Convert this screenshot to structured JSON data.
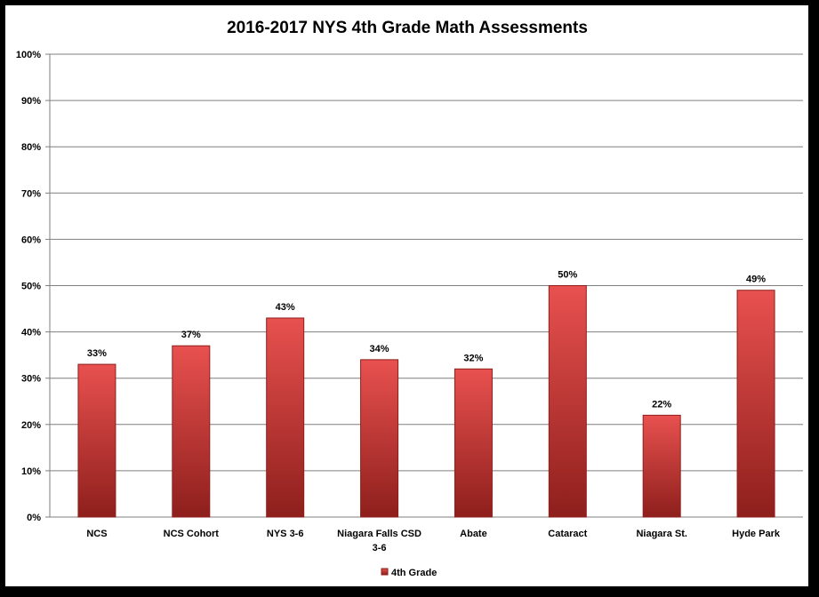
{
  "chart_data": {
    "type": "bar",
    "title": "2016-2017  NYS 4th Grade Math Assessments",
    "categories": [
      "NCS",
      "NCS Cohort",
      "NYS 3-6",
      "Niagara Falls CSD 3-6",
      "Abate",
      "Cataract",
      "Niagara St.",
      "Hyde Park"
    ],
    "series": [
      {
        "name": "4th Grade",
        "values": [
          33,
          37,
          43,
          34,
          32,
          50,
          22,
          49
        ]
      }
    ],
    "data_labels": [
      "33%",
      "37%",
      "43%",
      "34%",
      "32%",
      "50%",
      "22%",
      "49%"
    ],
    "y_ticks": [
      "0%",
      "10%",
      "20%",
      "30%",
      "40%",
      "50%",
      "60%",
      "70%",
      "80%",
      "90%",
      "100%"
    ],
    "ylim": [
      0,
      100
    ],
    "xlabel": "",
    "ylabel": "",
    "grid": true,
    "legend_position": "bottom",
    "colors": {
      "bar": "#c0392b",
      "bar_light": "#e8514f",
      "bar_dark": "#8e1f1c",
      "grid": "#7f7f7f"
    }
  }
}
